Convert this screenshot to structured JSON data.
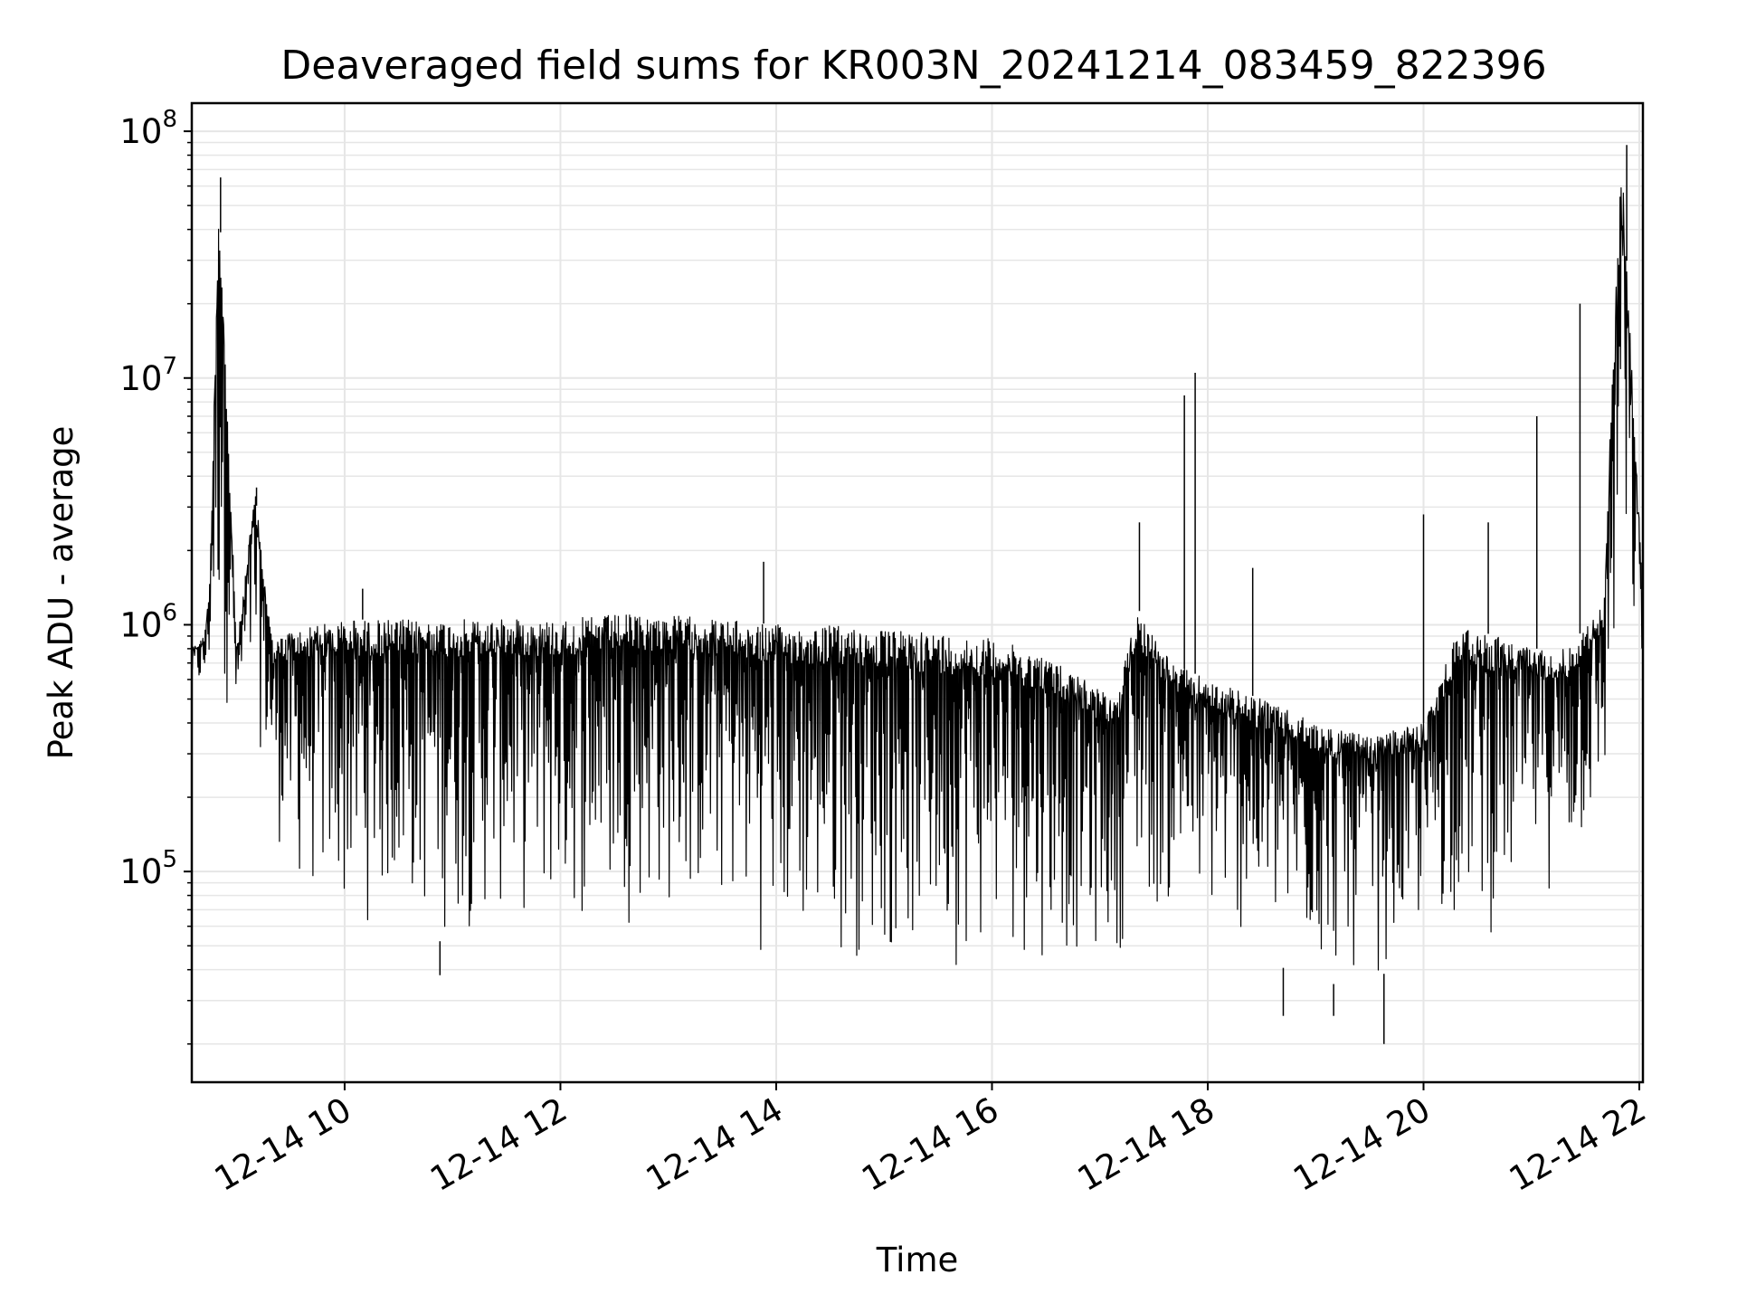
{
  "chart_data": {
    "type": "line",
    "title": "Deaveraged field sums for KR003N_20241214_083459_822396",
    "xlabel": "Time",
    "ylabel": "Peak ADU - average",
    "y_scale": "log",
    "ylim": [
      14000,
      130000000
    ],
    "xlim": [
      "2024-12-14 08:35",
      "2024-12-14 22:02"
    ],
    "grid": true,
    "line_color": "#000000",
    "grid_color": "#e6e6e6",
    "x_ticks": [
      {
        "t": "2024-12-14 10:00",
        "label": "12-14 10"
      },
      {
        "t": "2024-12-14 12:00",
        "label": "12-14 12"
      },
      {
        "t": "2024-12-14 14:00",
        "label": "12-14 14"
      },
      {
        "t": "2024-12-14 16:00",
        "label": "12-14 16"
      },
      {
        "t": "2024-12-14 18:00",
        "label": "12-14 18"
      },
      {
        "t": "2024-12-14 20:00",
        "label": "12-14 20"
      },
      {
        "t": "2024-12-14 22:00",
        "label": "12-14 22"
      }
    ],
    "y_ticks": [
      {
        "value": 100000,
        "base": "10",
        "exp": "5"
      },
      {
        "value": 1000000,
        "base": "10",
        "exp": "6"
      },
      {
        "value": 10000000,
        "base": "10",
        "exp": "7"
      },
      {
        "value": 100000000,
        "base": "10",
        "exp": "8"
      }
    ],
    "series": [
      {
        "envelope": [
          {
            "t": "2024-12-14 08:35",
            "high": 800000,
            "low": 550000
          },
          {
            "t": "2024-12-14 08:42",
            "high": 900000,
            "low": 500000
          },
          {
            "t": "2024-12-14 08:45",
            "high": 1500000,
            "low": 600000
          },
          {
            "t": "2024-12-14 08:50",
            "high": 60000000,
            "low": 500000
          },
          {
            "t": "2024-12-14 09:00",
            "high": 800000,
            "low": 350000
          },
          {
            "t": "2024-12-14 09:10",
            "high": 3500000,
            "low": 400000
          },
          {
            "t": "2024-12-14 09:20",
            "high": 850000,
            "low": 150000
          },
          {
            "t": "2024-12-14 09:30",
            "high": 950000,
            "low": 80000
          },
          {
            "t": "2024-12-14 10:00",
            "high": 1050000,
            "low": 55000
          },
          {
            "t": "2024-12-14 10:30",
            "high": 1050000,
            "low": 60000
          },
          {
            "t": "2024-12-14 11:00",
            "high": 1050000,
            "low": 50000
          },
          {
            "t": "2024-12-14 11:30",
            "high": 1050000,
            "low": 60000
          },
          {
            "t": "2024-12-14 12:00",
            "high": 1050000,
            "low": 55000
          },
          {
            "t": "2024-12-14 12:30",
            "high": 1100000,
            "low": 60000
          },
          {
            "t": "2024-12-14 13:00",
            "high": 1100000,
            "low": 60000
          },
          {
            "t": "2024-12-14 13:30",
            "high": 1050000,
            "low": 60000
          },
          {
            "t": "2024-12-14 14:00",
            "high": 1000000,
            "low": 40000
          },
          {
            "t": "2024-12-14 14:30",
            "high": 1000000,
            "low": 42000
          },
          {
            "t": "2024-12-14 15:00",
            "high": 950000,
            "low": 40000
          },
          {
            "t": "2024-12-14 15:30",
            "high": 930000,
            "low": 38000
          },
          {
            "t": "2024-12-14 16:00",
            "high": 880000,
            "low": 42000
          },
          {
            "t": "2024-12-14 16:30",
            "high": 750000,
            "low": 42000
          },
          {
            "t": "2024-12-14 17:00",
            "high": 550000,
            "low": 40000
          },
          {
            "t": "2024-12-14 17:10",
            "high": 500000,
            "low": 45000
          },
          {
            "t": "2024-12-14 17:20",
            "high": 1200000,
            "low": 60000
          },
          {
            "t": "2024-12-14 17:40",
            "high": 700000,
            "low": 60000
          },
          {
            "t": "2024-12-14 18:00",
            "high": 600000,
            "low": 55000
          },
          {
            "t": "2024-12-14 18:30",
            "high": 500000,
            "low": 45000
          },
          {
            "t": "2024-12-14 19:00",
            "high": 400000,
            "low": 35000
          },
          {
            "t": "2024-12-14 19:30",
            "high": 350000,
            "low": 35000
          },
          {
            "t": "2024-12-14 20:00",
            "high": 400000,
            "low": 50000
          },
          {
            "t": "2024-12-14 20:20",
            "high": 1000000,
            "low": 60000
          },
          {
            "t": "2024-12-14 20:40",
            "high": 900000,
            "low": 50000
          },
          {
            "t": "2024-12-14 21:00",
            "high": 800000,
            "low": 80000
          },
          {
            "t": "2024-12-14 21:20",
            "high": 800000,
            "low": 80000
          },
          {
            "t": "2024-12-14 21:40",
            "high": 1200000,
            "low": 150000
          },
          {
            "t": "2024-12-14 21:50",
            "high": 85000000,
            "low": 700000
          },
          {
            "t": "2024-12-14 22:02",
            "high": 1300000,
            "low": 600000
          }
        ],
        "spikes": [
          {
            "t": "2024-12-14 08:51",
            "value": 65000000
          },
          {
            "t": "2024-12-14 09:11",
            "value": 3600000
          },
          {
            "t": "2024-12-14 10:10",
            "value": 1400000
          },
          {
            "t": "2024-12-14 13:53",
            "value": 1800000
          },
          {
            "t": "2024-12-14 17:22",
            "value": 2600000
          },
          {
            "t": "2024-12-14 17:47",
            "value": 8500000
          },
          {
            "t": "2024-12-14 17:53",
            "value": 10500000
          },
          {
            "t": "2024-12-14 18:25",
            "value": 1700000
          },
          {
            "t": "2024-12-14 20:00",
            "value": 2800000
          },
          {
            "t": "2024-12-14 20:36",
            "value": 2600000
          },
          {
            "t": "2024-12-14 21:03",
            "value": 7000000
          },
          {
            "t": "2024-12-14 21:27",
            "value": 20000000
          },
          {
            "t": "2024-12-14 21:53",
            "value": 88000000
          }
        ],
        "dips": [
          {
            "t": "2024-12-14 10:53",
            "value": 38000
          },
          {
            "t": "2024-12-14 18:42",
            "value": 26000
          },
          {
            "t": "2024-12-14 19:10",
            "value": 26000
          },
          {
            "t": "2024-12-14 19:38",
            "value": 20000
          }
        ]
      }
    ]
  }
}
